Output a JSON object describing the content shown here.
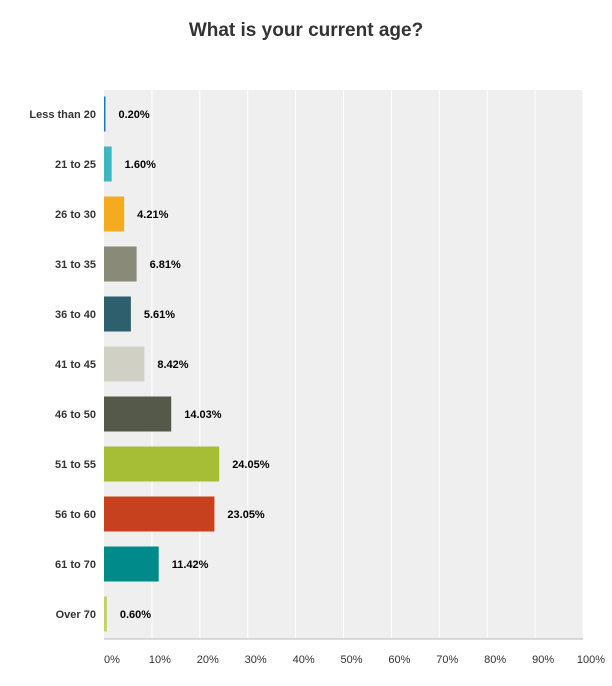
{
  "chart_data": {
    "type": "bar",
    "orientation": "horizontal",
    "title": "What is your current age?",
    "xlabel": "",
    "ylabel": "",
    "xlim": [
      0,
      100
    ],
    "x_tick_values": [
      0,
      10,
      20,
      30,
      40,
      50,
      60,
      70,
      80,
      90,
      100
    ],
    "x_tick_labels": [
      "0%",
      "10%",
      "20%",
      "30%",
      "40%",
      "50%",
      "60%",
      "70%",
      "80%",
      "90%",
      "100%"
    ],
    "grid": true,
    "legend": "none",
    "categories": [
      "Less than 20",
      "21 to 25",
      "26 to 30",
      "31 to 35",
      "36 to 40",
      "41 to 45",
      "46 to 50",
      "51 to 55",
      "56 to 60",
      "61 to 70",
      "Over 70"
    ],
    "values": [
      0.2,
      1.6,
      4.21,
      6.81,
      5.61,
      8.42,
      14.03,
      24.05,
      23.05,
      11.42,
      0.6
    ],
    "value_labels": [
      "0.20%",
      "1.60%",
      "4.21%",
      "6.81%",
      "5.61%",
      "8.42%",
      "14.03%",
      "24.05%",
      "23.05%",
      "11.42%",
      "0.60%"
    ],
    "colors": [
      "#1f77b4",
      "#3bb8bf",
      "#f5ab1e",
      "#8a8a78",
      "#2e5f6c",
      "#d0d0c4",
      "#55594a",
      "#a6bd36",
      "#c8411e",
      "#008b8b",
      "#c6cf6a"
    ],
    "plot_background": "#efefef",
    "grid_color": "#ffffff"
  }
}
